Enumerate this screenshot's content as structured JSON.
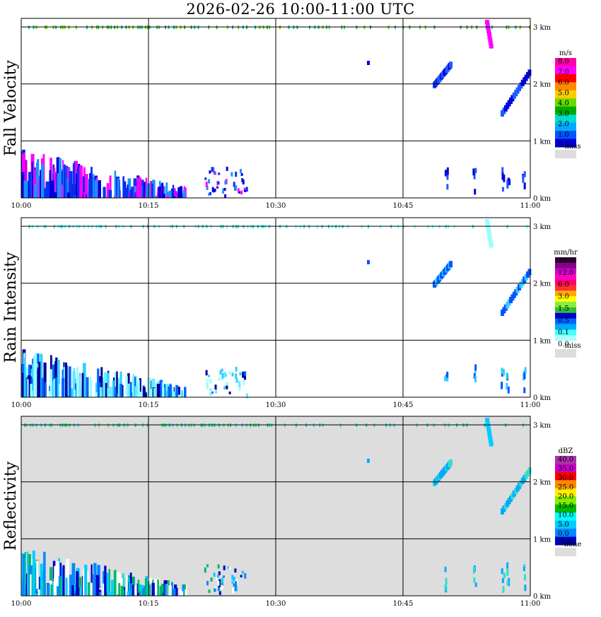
{
  "title": "2026-02-26  10:00-11:00 UTC",
  "chart_data": [
    {
      "type": "heatmap",
      "panel_label": "Fall Velocity",
      "x_ticks": [
        "10:00",
        "10:15",
        "10:30",
        "10:45",
        "11:00"
      ],
      "y_ticks": [
        "0 km",
        "1 km",
        "2 km",
        "3 km"
      ],
      "background": "#ffffff",
      "legend_unit": "m/s",
      "legend_colors": [
        "#0000dd",
        "#0055ff",
        "#00aaff",
        "#00ddcc",
        "#00aa00",
        "#66dd00",
        "#ffcc00",
        "#ff8800",
        "#ff0000",
        "#ff00ff",
        "#ff00aa"
      ],
      "legend_labels": [
        "8.0",
        "7.0",
        "6.0",
        "5.0",
        "4.0",
        "3.0",
        "2.0",
        "1.0",
        "0.0"
      ],
      "legend_missing_label": "miss",
      "missing_color": "#dddddd",
      "base_colors": [
        "#0000dd",
        "#0033ee",
        "#1e90ff",
        "#ff00ff"
      ],
      "top_colors": [
        "#66cc00",
        "#33aa33",
        "#00bbaa"
      ],
      "streak_colors": [
        "#0000dd",
        "#1e5aff"
      ]
    },
    {
      "type": "heatmap",
      "panel_label": "Rain Intensity",
      "x_ticks": [
        "10:00",
        "10:15",
        "10:30",
        "10:45",
        "11:00"
      ],
      "y_ticks": [
        "0 km",
        "1 km",
        "2 km",
        "3 km"
      ],
      "background": "#ffffff",
      "legend_unit": "mm/hr",
      "legend_colors": [
        "#ffffff",
        "#aaffff",
        "#44ffff",
        "#00aaff",
        "#0066ff",
        "#0000cc",
        "#33bb33",
        "#88ee44",
        "#ffff00",
        "#ffaa00",
        "#ff3333",
        "#ff0066",
        "#ff00cc",
        "#cc00cc",
        "#880088",
        "#330033"
      ],
      "legend_labels": [
        "48.0",
        "12.0",
        "6.0",
        "3.0",
        "1.5",
        "0.5",
        "0.1",
        "0.0"
      ],
      "legend_missing_label": "miss",
      "missing_color": "#dddddd",
      "base_colors": [
        "#99ffff",
        "#66eeff",
        "#33ccff",
        "#0066ff",
        "#000099"
      ],
      "top_colors": [
        "#66ffff",
        "#33dddd"
      ],
      "streak_colors": [
        "#0055ff",
        "#33ccff"
      ]
    },
    {
      "type": "heatmap",
      "panel_label": "Reflectivity",
      "x_ticks": [
        "10:00",
        "10:15",
        "10:30",
        "10:45",
        "11:00"
      ],
      "y_ticks": [
        "0 km",
        "1 km",
        "2 km",
        "3 km"
      ],
      "background": "#dddddd",
      "legend_unit": "dBZ",
      "legend_colors": [
        "#0000bb",
        "#0088ff",
        "#00ccff",
        "#00ffff",
        "#00bb00",
        "#88ee00",
        "#ffee00",
        "#ff8800",
        "#ff0000",
        "#cc00cc",
        "#aa33aa"
      ],
      "legend_labels": [
        "40.0",
        "35.0",
        "30.0",
        "25.0",
        "20.0",
        "15.0",
        "10.0",
        "5.0",
        "0.0",
        "-5.0"
      ],
      "legend_missing_label": "none",
      "missing_color": "#dddddd",
      "base_colors": [
        "#00ccff",
        "#0088ff",
        "#0000cc",
        "#ffffff",
        "#00bb66"
      ],
      "top_colors": [
        "#33dd66",
        "#00ccaa",
        "#33cccc"
      ],
      "streak_colors": [
        "#00aaff",
        "#33ddcc"
      ]
    }
  ]
}
